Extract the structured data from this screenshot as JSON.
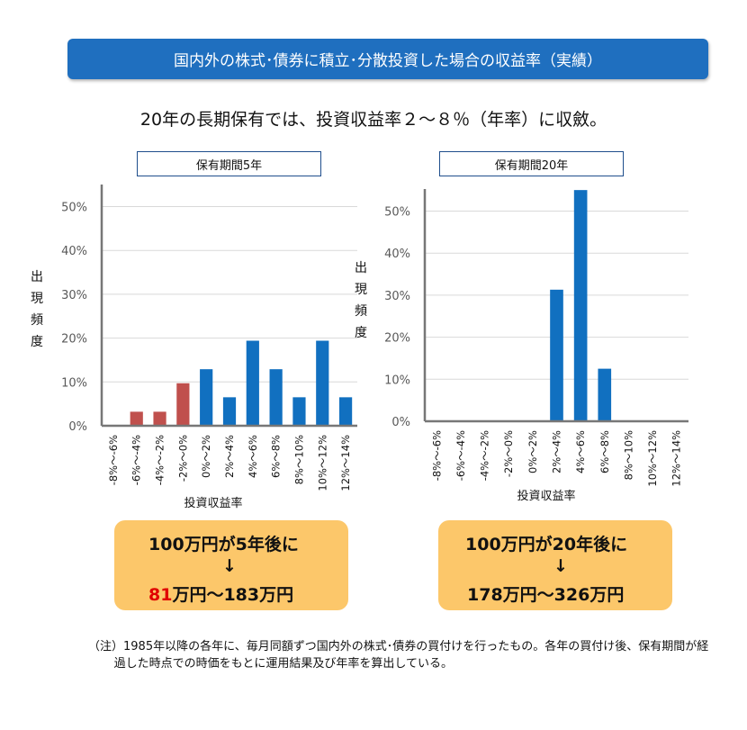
{
  "title": "国内外の株式･債券に積立･分散投資した場合の収益率（実績）",
  "subtitle": "20年の長期保有では、投資収益率２～８％（年率）に収斂。",
  "colors": {
    "banner": "#1f6fbf",
    "positive_bar": "#1170c0",
    "negative_bar": "#c0504d",
    "result_box": "#fcc76a",
    "highlight": "#e00000"
  },
  "chart_data": [
    {
      "type": "bar",
      "title": "保有期間5年",
      "xlabel": "投資収益率",
      "ylabel": "出現頻度",
      "ylim": [
        0,
        50
      ],
      "yticks": [
        "0%",
        "10%",
        "20%",
        "30%",
        "40%",
        "50%"
      ],
      "grid": true,
      "categories": [
        "-8%～-6%",
        "-6%～-4%",
        "-4%～-2%",
        "-2%～0%",
        "0%～2%",
        "2%～4%",
        "4%～6%",
        "6%～8%",
        "8%～10%",
        "10%～12%",
        "12%～14%"
      ],
      "values": [
        0,
        3.2,
        3.2,
        9.7,
        12.9,
        6.5,
        19.4,
        12.9,
        6.5,
        19.4,
        6.5
      ]
    },
    {
      "type": "bar",
      "title": "保有期間20年",
      "xlabel": "投資収益率",
      "ylabel": "出現頻度",
      "ylim": [
        0,
        55
      ],
      "yticks": [
        "0%",
        "10%",
        "20%",
        "30%",
        "40%",
        "50%"
      ],
      "grid": true,
      "categories": [
        "-8%～-6%",
        "-6%～-4%",
        "-4%～-2%",
        "-2%～0%",
        "0%～2%",
        "2%～4%",
        "4%～6%",
        "6%～8%",
        "8%～10%",
        "10%～12%",
        "12%～14%"
      ],
      "values": [
        0,
        0,
        0,
        0,
        0,
        31.3,
        55,
        12.5,
        0,
        0,
        0
      ]
    }
  ],
  "results": [
    {
      "line1": "100万円が5年後に",
      "arrow": "↓",
      "low": "81",
      "rest": "万円～183万円"
    },
    {
      "line1": "100万円が20年後に",
      "arrow": "↓",
      "low": "178",
      "rest": "万円～326万円"
    }
  ],
  "note": "（注）1985年以降の各年に、毎月同額ずつ国内外の株式･債券の買付けを行ったもの。各年の買付け後、保有期間が経過した時点での時価をもとに運用結果及び年率を算出している。"
}
